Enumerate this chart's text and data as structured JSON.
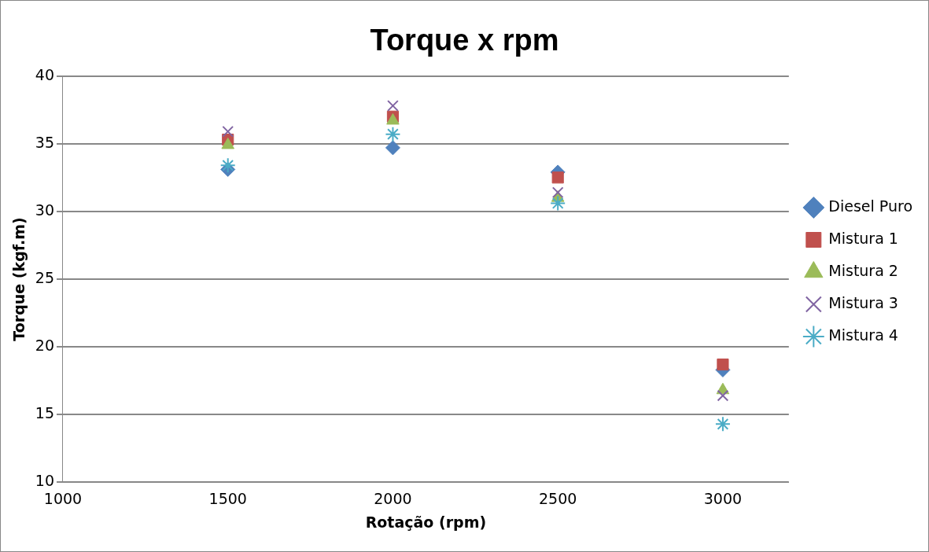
{
  "chart_data": {
    "type": "scatter",
    "title": "Torque x rpm",
    "xlabel": "Rotação (rpm)",
    "ylabel": "Torque (kgf.m)",
    "x": [
      1500,
      2000,
      2500,
      3000
    ],
    "series": [
      {
        "name": "Diesel Puro",
        "color": "#4f81bd",
        "marker": "diamond",
        "values": [
          33.1,
          34.7,
          32.9,
          18.3
        ]
      },
      {
        "name": "Mistura 1",
        "color": "#c0504d",
        "marker": "square",
        "values": [
          35.3,
          37.0,
          32.5,
          18.7
        ]
      },
      {
        "name": "Mistura 2",
        "color": "#9bbb59",
        "marker": "triangle",
        "values": [
          34.9,
          36.7,
          31.0,
          16.8
        ]
      },
      {
        "name": "Mistura 3",
        "color": "#8064a2",
        "marker": "cross",
        "values": [
          35.9,
          37.8,
          31.4,
          16.4
        ]
      },
      {
        "name": "Mistura 4",
        "color": "#4bacc6",
        "values": [
          33.4,
          35.7,
          30.6,
          14.3
        ]
      }
    ],
    "xlim": [
      1000,
      3200
    ],
    "xticks": [
      1000,
      1500,
      2000,
      2500,
      3000
    ],
    "ylim": [
      10,
      40
    ],
    "yticks": [
      10,
      15,
      20,
      25,
      30,
      35,
      40
    ],
    "grid": "y",
    "legend": "right"
  }
}
